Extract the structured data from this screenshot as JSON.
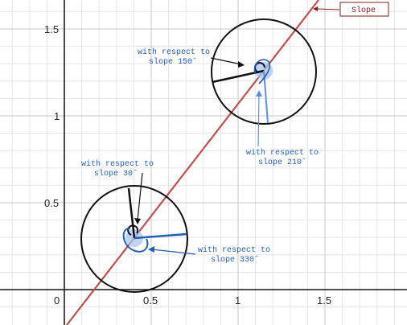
{
  "axes": {
    "x_ticks": [
      "0.5",
      "1",
      "1.5"
    ],
    "y_ticks": [
      "0.5",
      "1",
      "1.5"
    ],
    "origin_label": "0"
  },
  "labels": {
    "slope": "Slope",
    "slope150_line1": "with respect to",
    "slope150_line2": "slope 150ˆ",
    "slope210_line1": "with respect to",
    "slope210_line2": "slope 210ˆ",
    "slope30_line1": "with respect to",
    "slope30_line2": "slope 30ˆ",
    "slope330_line1": "with respect to",
    "slope330_line2": "slope 330ˆ"
  },
  "colors": {
    "slope_line": "#c0504d",
    "slope_box_text": "#8b1a1a",
    "blue": "#1f5fbf",
    "light_blue": "#5b8fe0",
    "black": "#111111",
    "grid_major": "#c8c8c8",
    "grid_minor": "#e6e6e6"
  }
}
